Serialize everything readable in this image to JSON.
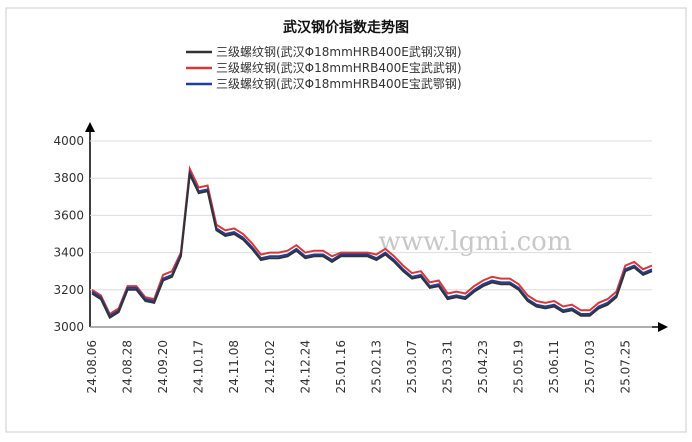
{
  "chart_data": {
    "type": "line",
    "title": "武汉钢价指数走势图",
    "watermark": "www.lgmi.com",
    "categories": [
      "24.08.06",
      null,
      null,
      null,
      "24.08.28",
      null,
      null,
      null,
      "24.09.20",
      null,
      null,
      null,
      "24.10.17",
      null,
      null,
      null,
      "24.11.08",
      null,
      null,
      null,
      "24.12.02",
      null,
      null,
      null,
      "24.12.24",
      null,
      null,
      null,
      "25.01.16",
      null,
      null,
      null,
      "25.02.13",
      null,
      null,
      null,
      "25.03.07",
      null,
      null,
      null,
      "25.03.31",
      null,
      null,
      null,
      "25.04.23",
      null,
      null,
      null,
      "25.05.19",
      null,
      null,
      null,
      "25.06.11",
      null,
      null,
      null,
      "25.07.03",
      null,
      null,
      null,
      "25.07.25",
      null,
      null,
      null
    ],
    "series": [
      {
        "name": "三级螺纹钢(武汉Φ18mmHRB400E武钢汉钢)",
        "color": "#333333",
        "values": [
          3180,
          3150,
          3050,
          3080,
          3200,
          3200,
          3140,
          3130,
          3250,
          3270,
          3380,
          3820,
          3720,
          3730,
          3520,
          3490,
          3500,
          3470,
          3420,
          3360,
          3370,
          3370,
          3380,
          3410,
          3370,
          3380,
          3380,
          3350,
          3380,
          3380,
          3380,
          3380,
          3360,
          3390,
          3350,
          3300,
          3260,
          3270,
          3210,
          3220,
          3150,
          3160,
          3150,
          3190,
          3220,
          3240,
          3230,
          3230,
          3200,
          3140,
          3110,
          3100,
          3110,
          3080,
          3090,
          3060,
          3060,
          3100,
          3120,
          3160,
          3300,
          3320,
          3280,
          3300
        ]
      },
      {
        "name": "三级螺纹钢(武汉Φ18mmHRB400E宝武武钢)",
        "color": "#d9383a",
        "values": [
          3200,
          3170,
          3070,
          3100,
          3220,
          3220,
          3160,
          3150,
          3280,
          3300,
          3400,
          3850,
          3750,
          3760,
          3550,
          3520,
          3530,
          3500,
          3450,
          3390,
          3400,
          3400,
          3410,
          3440,
          3400,
          3410,
          3410,
          3380,
          3400,
          3400,
          3400,
          3400,
          3390,
          3420,
          3380,
          3330,
          3290,
          3300,
          3240,
          3250,
          3180,
          3190,
          3180,
          3220,
          3250,
          3270,
          3260,
          3260,
          3230,
          3170,
          3140,
          3130,
          3140,
          3110,
          3120,
          3090,
          3090,
          3130,
          3150,
          3190,
          3330,
          3350,
          3310,
          3330
        ]
      },
      {
        "name": "三级螺纹钢(武汉Φ18mmHRB400E宝武鄂钢)",
        "color": "#1f3fa0",
        "values": [
          3190,
          3160,
          3060,
          3090,
          3210,
          3210,
          3150,
          3140,
          3260,
          3280,
          3390,
          3830,
          3730,
          3740,
          3530,
          3500,
          3510,
          3480,
          3430,
          3370,
          3380,
          3380,
          3390,
          3420,
          3380,
          3390,
          3390,
          3360,
          3390,
          3390,
          3390,
          3390,
          3370,
          3400,
          3360,
          3310,
          3270,
          3280,
          3220,
          3230,
          3160,
          3170,
          3160,
          3200,
          3230,
          3250,
          3240,
          3240,
          3210,
          3150,
          3120,
          3110,
          3120,
          3090,
          3100,
          3070,
          3070,
          3110,
          3130,
          3170,
          3310,
          3330,
          3290,
          3310
        ]
      }
    ],
    "ylim": [
      3000,
      4000
    ],
    "yticks": [
      3000,
      3200,
      3400,
      3600,
      3800,
      4000
    ],
    "grid": true
  }
}
